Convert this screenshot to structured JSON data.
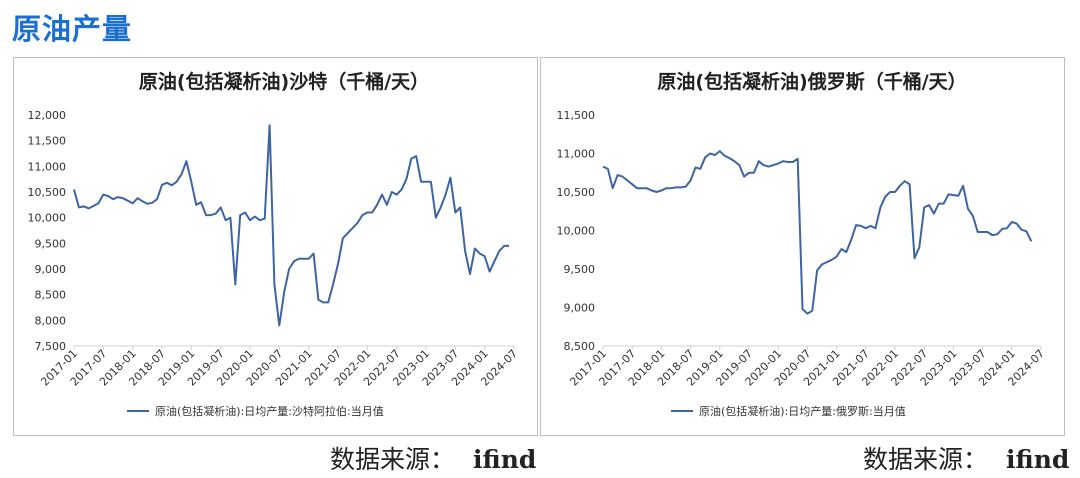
{
  "page_title": "原油产量",
  "charts": [
    {
      "id": "saudi",
      "source_label": "数据来源：",
      "source_name": "ifind",
      "chart_data": {
        "type": "line",
        "title": "原油(包括凝析油)沙特（千桶/天）",
        "xlabel": "",
        "ylabel": "",
        "ylim": [
          7500,
          12000
        ],
        "yticks": [
          7500,
          8000,
          8500,
          9000,
          9500,
          10000,
          10500,
          11000,
          11500,
          12000
        ],
        "ytick_labels": [
          "7,500",
          "8,000",
          "8,500",
          "9,000",
          "9,500",
          "10,000",
          "10,500",
          "11,000",
          "11,500",
          "12,000"
        ],
        "xtick_labels": [
          "2017-01",
          "2017-07",
          "2018-01",
          "2018-07",
          "2019-01",
          "2019-07",
          "2020-01",
          "2020-07",
          "2021-01",
          "2021-07",
          "2022-01",
          "2022-07",
          "2023-01",
          "2023-07",
          "2024-01",
          "2024-07"
        ],
        "x_start": "2017-01",
        "legend": "top-bottom-center",
        "line_color": "#3e64a4",
        "series": [
          {
            "name": "原油(包括凝析油):日均产量:沙特阿拉伯:当月值",
            "values": [
              10550,
              10200,
              10220,
              10180,
              10230,
              10280,
              10450,
              10420,
              10360,
              10400,
              10380,
              10330,
              10280,
              10380,
              10320,
              10270,
              10290,
              10360,
              10640,
              10680,
              10630,
              10700,
              10850,
              11100,
              10700,
              10250,
              10300,
              10050,
              10050,
              10080,
              10200,
              9950,
              10000,
              8700,
              10050,
              10100,
              9950,
              10020,
              9950,
              9980,
              11800,
              8700,
              7900,
              8550,
              9000,
              9150,
              9200,
              9200,
              9200,
              9300,
              8400,
              8350,
              8350,
              8700,
              9100,
              9600,
              9700,
              9800,
              9900,
              10050,
              10100,
              10100,
              10250,
              10450,
              10250,
              10500,
              10450,
              10550,
              10750,
              11150,
              11200,
              10700,
              10700,
              10700,
              10000,
              10200,
              10450,
              10780,
              10100,
              10200,
              9350,
              8900,
              9400,
              9300,
              9250,
              8950,
              9150,
              9350,
              9450,
              9450
            ]
          }
        ]
      }
    },
    {
      "id": "russia",
      "source_label": "数据来源：",
      "source_name": "ifind",
      "chart_data": {
        "type": "line",
        "title": "原油(包括凝析油)俄罗斯（千桶/天）",
        "xlabel": "",
        "ylabel": "",
        "ylim": [
          8500,
          11500
        ],
        "yticks": [
          8500,
          9000,
          9500,
          10000,
          10500,
          11000,
          11500
        ],
        "ytick_labels": [
          "8,500",
          "9,000",
          "9,500",
          "10,000",
          "10,500",
          "11,000",
          "11,500"
        ],
        "xtick_labels": [
          "2017-01",
          "2017-07",
          "2018-01",
          "2018-07",
          "2019-01",
          "2019-07",
          "2020-01",
          "2020-07",
          "2021-01",
          "2021-07",
          "2022-01",
          "2022-07",
          "2023-01",
          "2023-07",
          "2024-01",
          "2024-07"
        ],
        "x_start": "2017-01",
        "legend": "bottom-center",
        "line_color": "#3e64a4",
        "series": [
          {
            "name": "原油(包括凝析油):日均产量:俄罗斯:当月值",
            "values": [
              10830,
              10800,
              10550,
              10720,
              10700,
              10650,
              10600,
              10550,
              10550,
              10550,
              10520,
              10500,
              10520,
              10550,
              10550,
              10560,
              10560,
              10570,
              10650,
              10820,
              10800,
              10950,
              11000,
              10980,
              11030,
              10970,
              10940,
              10900,
              10850,
              10700,
              10750,
              10750,
              10900,
              10850,
              10830,
              10850,
              10870,
              10900,
              10890,
              10890,
              10930,
              8980,
              8920,
              8960,
              9480,
              9560,
              9590,
              9620,
              9660,
              9760,
              9720,
              9880,
              10070,
              10060,
              10030,
              10060,
              10030,
              10300,
              10440,
              10500,
              10500,
              10580,
              10640,
              10600,
              9640,
              9780,
              10300,
              10330,
              10220,
              10350,
              10350,
              10470,
              10460,
              10450,
              10580,
              10280,
              10190,
              9980,
              9980,
              9980,
              9940,
              9950,
              10020,
              10030,
              10110,
              10090,
              10010,
              9990,
              9860
            ]
          }
        ]
      }
    }
  ]
}
